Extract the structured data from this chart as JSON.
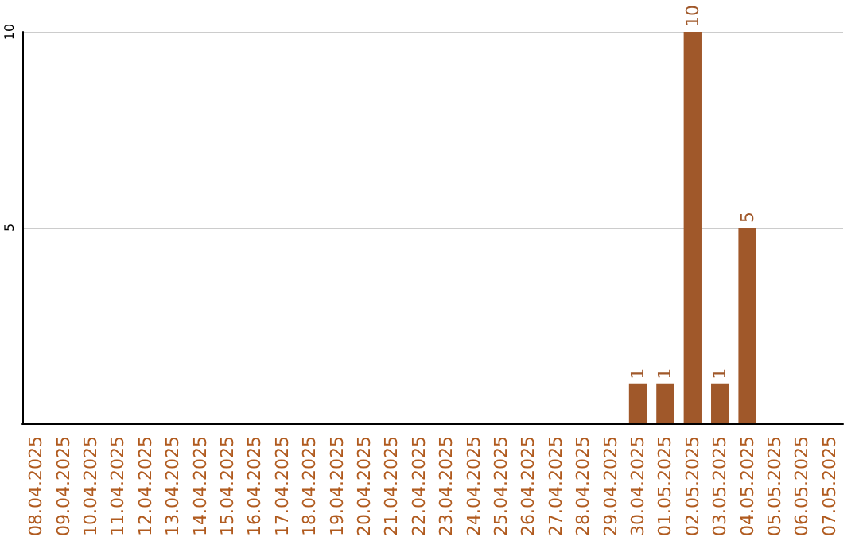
{
  "chart_data": {
    "type": "bar",
    "categories": [
      "08.04.2025",
      "09.04.2025",
      "10.04.2025",
      "11.04.2025",
      "12.04.2025",
      "13.04.2025",
      "14.04.2025",
      "15.04.2025",
      "16.04.2025",
      "17.04.2025",
      "18.04.2025",
      "19.04.2025",
      "20.04.2025",
      "21.04.2025",
      "22.04.2025",
      "23.04.2025",
      "24.04.2025",
      "25.04.2025",
      "26.04.2025",
      "27.04.2025",
      "28.04.2025",
      "29.04.2025",
      "30.04.2025",
      "01.05.2025",
      "02.05.2025",
      "03.05.2025",
      "04.05.2025",
      "05.05.2025",
      "06.05.2025",
      "07.05.2025"
    ],
    "values": [
      0,
      0,
      0,
      0,
      0,
      0,
      0,
      0,
      0,
      0,
      0,
      0,
      0,
      0,
      0,
      0,
      0,
      0,
      0,
      0,
      0,
      0,
      1,
      1,
      10,
      1,
      5,
      0,
      0,
      0
    ],
    "value_labels": [
      null,
      null,
      null,
      null,
      null,
      null,
      null,
      null,
      null,
      null,
      null,
      null,
      null,
      null,
      null,
      null,
      null,
      null,
      null,
      null,
      null,
      null,
      "1",
      "1",
      "10",
      "1",
      "5",
      null,
      null,
      null
    ],
    "color": "#a0582a",
    "ylim": [
      0,
      10
    ],
    "yticks": [
      5,
      10
    ],
    "grid": "y"
  }
}
